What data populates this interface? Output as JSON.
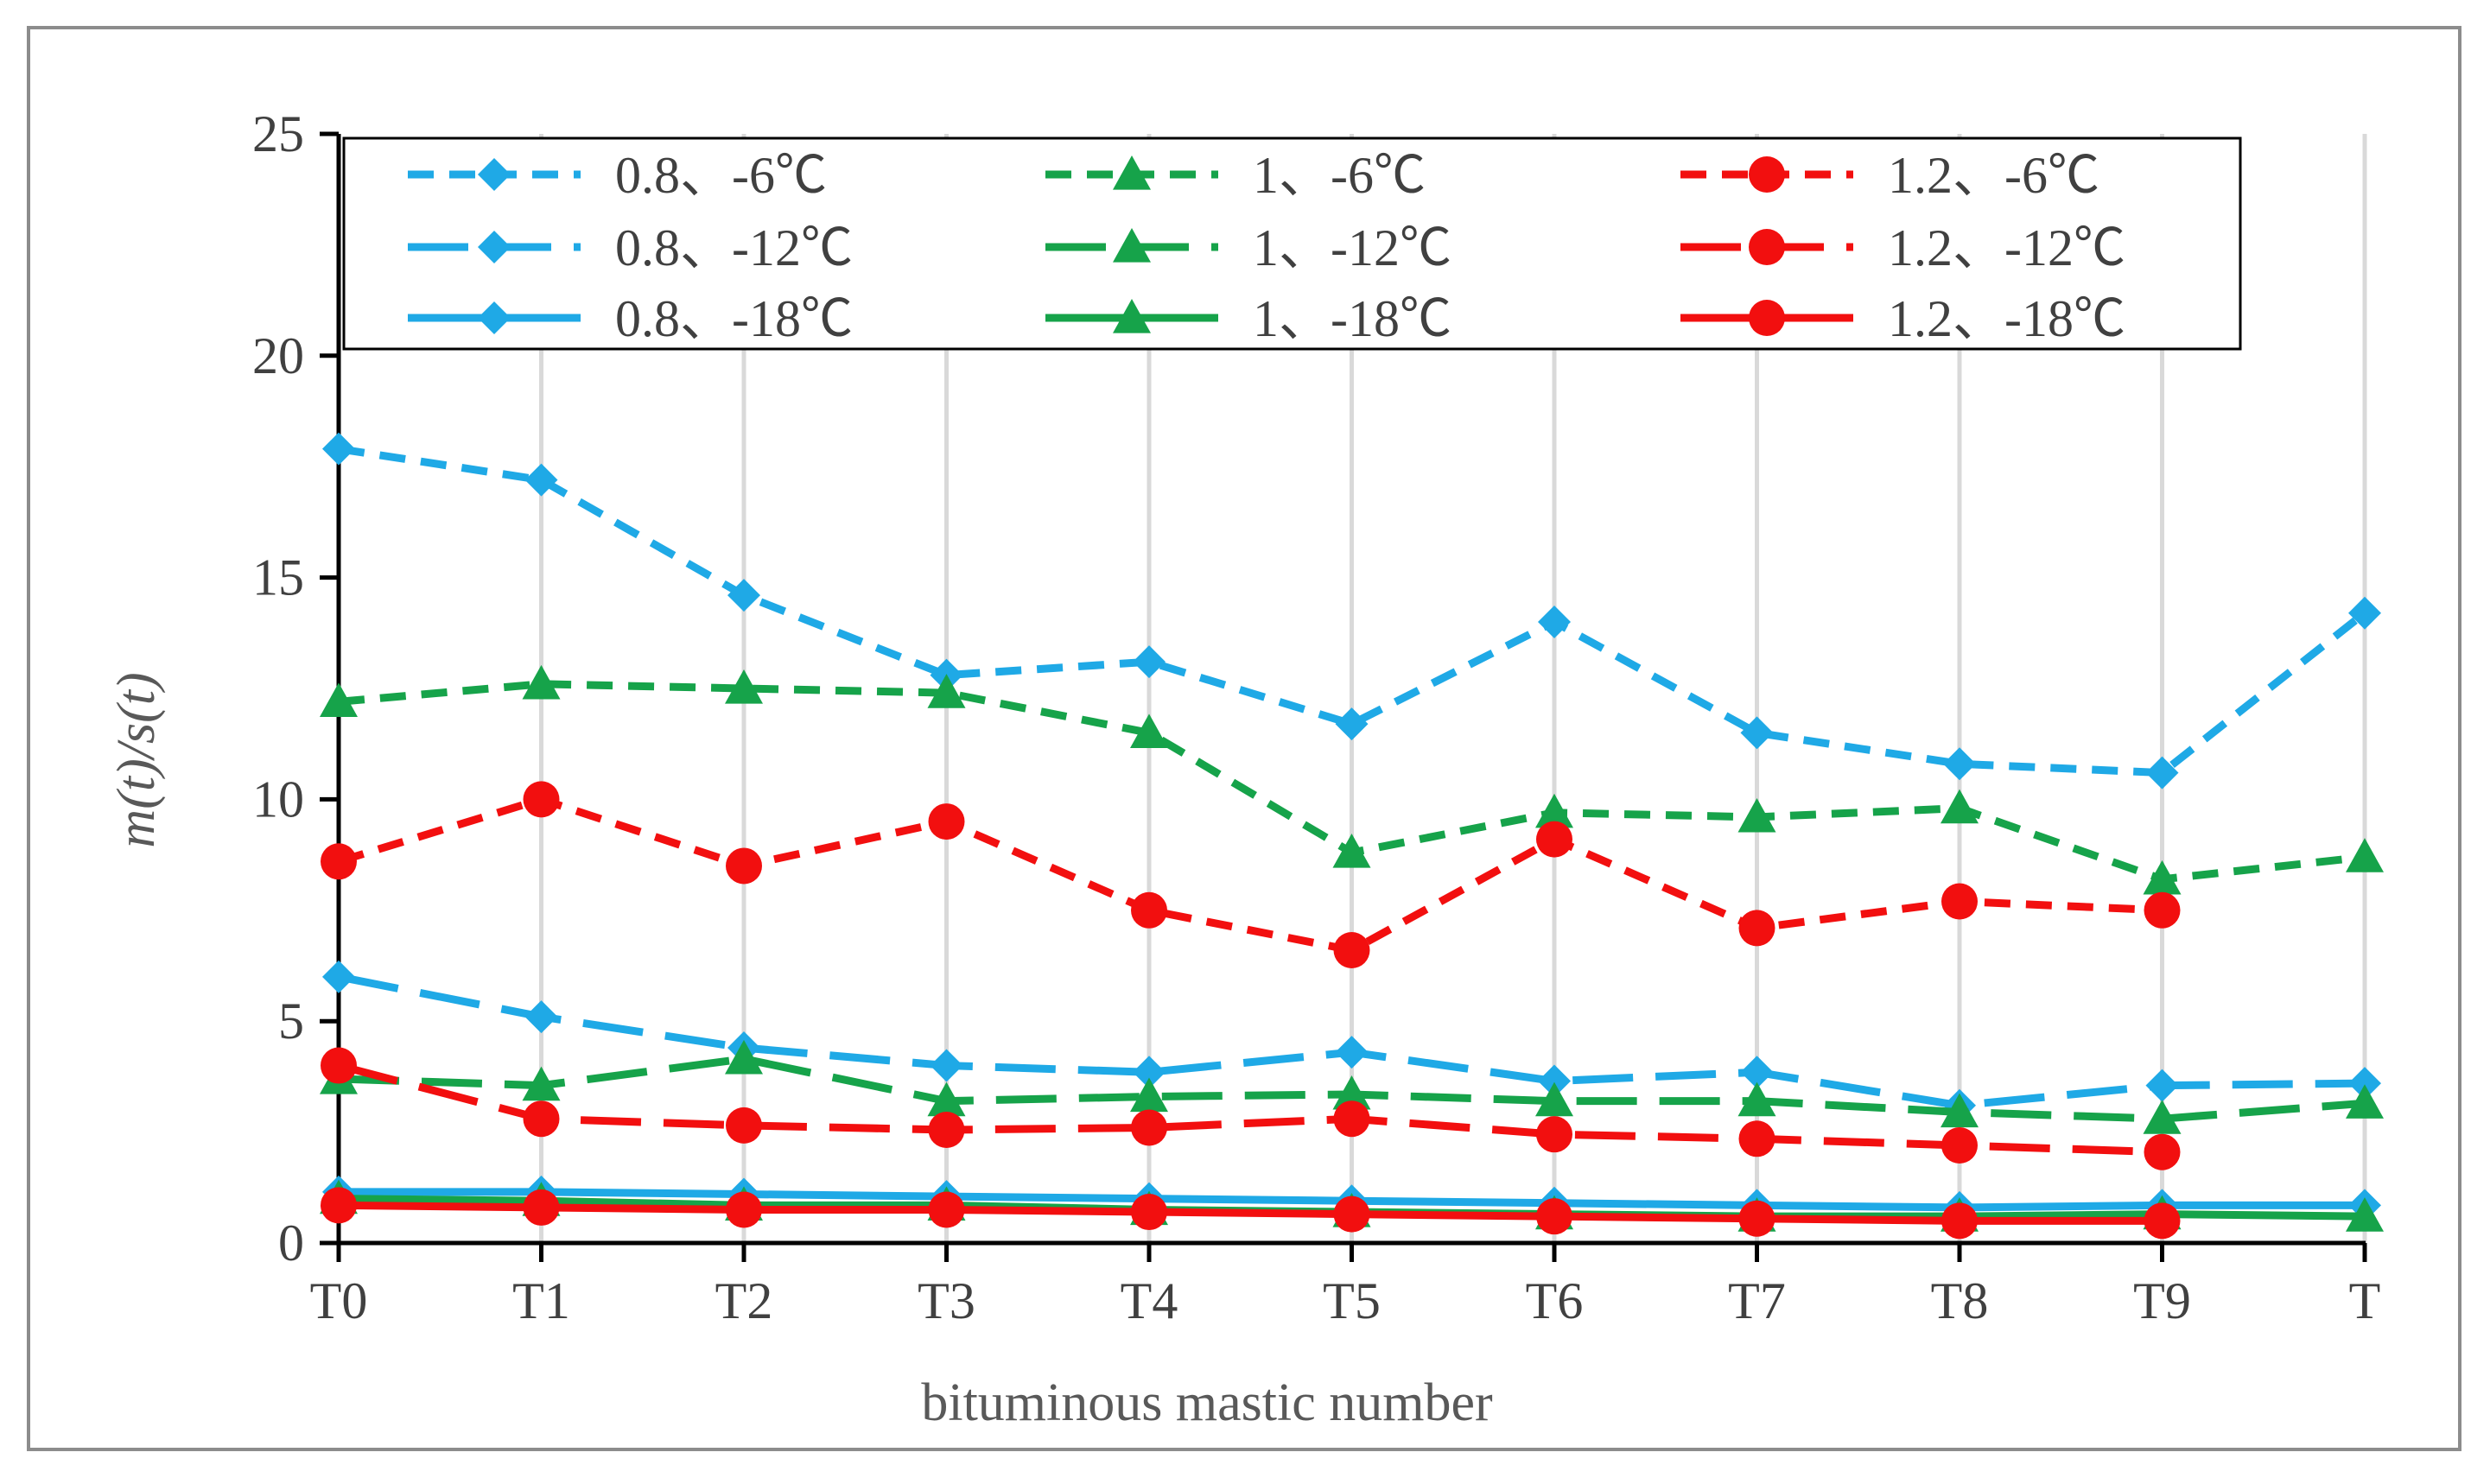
{
  "chart_data": {
    "type": "line",
    "title": "",
    "xlabel": "bituminous mastic number",
    "ylabel": "m(t)/s(t)",
    "ylim": [
      0,
      25
    ],
    "yticks": [
      0,
      5,
      10,
      15,
      20,
      25
    ],
    "grid": "vertical",
    "legend": "top",
    "categories": [
      "T0",
      "T1",
      "T2",
      "T3",
      "T4",
      "T5",
      "T6",
      "T7",
      "T8",
      "T9",
      "T"
    ],
    "series": [
      {
        "name": "0.8、-6℃",
        "color": "#1FA9E6",
        "dash": "short",
        "marker": "diamond",
        "values": [
          17.9,
          17.2,
          14.6,
          12.8,
          13.1,
          11.7,
          14.0,
          11.5,
          10.8,
          10.6,
          14.2
        ]
      },
      {
        "name": "1、-6℃",
        "color": "#16A34A",
        "dash": "short",
        "marker": "triangle",
        "values": [
          12.2,
          12.6,
          12.5,
          12.4,
          11.5,
          8.8,
          9.7,
          9.6,
          9.8,
          8.2,
          8.7
        ]
      },
      {
        "name": "1.2、-6℃",
        "color": "#F20F0F",
        "dash": "short",
        "marker": "circle",
        "values": [
          8.6,
          10.0,
          8.5,
          9.5,
          7.5,
          6.6,
          9.1,
          7.1,
          7.7,
          7.5,
          null
        ]
      },
      {
        "name": "0.8、-12℃",
        "color": "#1FA9E6",
        "dash": "long",
        "marker": "diamond",
        "values": [
          6.0,
          5.1,
          4.4,
          4.0,
          3.85,
          4.3,
          3.65,
          3.85,
          3.1,
          3.55,
          3.6
        ]
      },
      {
        "name": "1、-12℃",
        "color": "#16A34A",
        "dash": "long",
        "marker": "triangle",
        "values": [
          3.7,
          3.55,
          4.15,
          3.2,
          3.3,
          3.35,
          3.2,
          3.2,
          2.95,
          2.8,
          3.15
        ]
      },
      {
        "name": "1.2、-12℃",
        "color": "#F20F0F",
        "dash": "long",
        "marker": "circle",
        "values": [
          4.0,
          2.8,
          2.65,
          2.55,
          2.6,
          2.8,
          2.45,
          2.35,
          2.2,
          2.05,
          null
        ]
      },
      {
        "name": "0.8、-18℃",
        "color": "#1FA9E6",
        "dash": "solid",
        "marker": "diamond",
        "values": [
          1.15,
          1.15,
          1.1,
          1.05,
          1.0,
          0.95,
          0.9,
          0.85,
          0.8,
          0.85,
          0.85
        ]
      },
      {
        "name": "1、-18℃",
        "color": "#16A34A",
        "dash": "solid",
        "marker": "triangle",
        "values": [
          1.0,
          0.95,
          0.85,
          0.85,
          0.75,
          0.7,
          0.65,
          0.6,
          0.6,
          0.65,
          0.6
        ]
      },
      {
        "name": "1.2、-18℃",
        "color": "#F20F0F",
        "dash": "solid",
        "marker": "circle",
        "values": [
          0.85,
          0.8,
          0.75,
          0.75,
          0.7,
          0.65,
          0.6,
          0.55,
          0.5,
          0.5,
          null
        ]
      }
    ]
  }
}
